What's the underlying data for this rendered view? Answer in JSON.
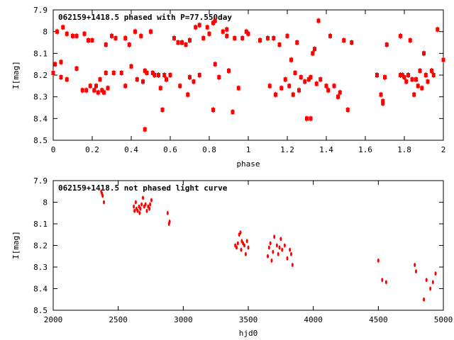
{
  "chart_data": [
    {
      "type": "scatter",
      "title": "062159+1418.5 phased with P=77.550day",
      "xlabel": "phase",
      "ylabel": "I[mag]",
      "xlim": [
        0,
        2
      ],
      "ylim": [
        7.9,
        8.5
      ],
      "y_inverted": true,
      "grid": false,
      "xticks": [
        0,
        0.2,
        0.4,
        0.6,
        0.8,
        1,
        1.2,
        1.4,
        1.6,
        1.8,
        2
      ],
      "xtick_labels": [
        "0",
        "0.2",
        "0.4",
        "0.6",
        "0.8",
        "1",
        "1.2",
        "1.4",
        "1.6",
        "1.8",
        "2"
      ],
      "yticks": [
        7.9,
        8,
        8.1,
        8.2,
        8.3,
        8.4,
        8.5
      ],
      "ytick_labels": [
        "7.9",
        "8",
        "8.1",
        "8.2",
        "8.3",
        "8.4",
        "8.5"
      ],
      "color": "#ff0000",
      "points": [
        [
          0.0,
          8.19
        ],
        [
          0.01,
          8.15
        ],
        [
          0.02,
          8.0
        ],
        [
          0.04,
          8.14
        ],
        [
          0.04,
          8.21
        ],
        [
          0.05,
          7.98
        ],
        [
          0.07,
          8.22
        ],
        [
          0.07,
          8.01
        ],
        [
          0.1,
          8.02
        ],
        [
          0.12,
          8.17
        ],
        [
          0.12,
          8.02
        ],
        [
          0.15,
          8.27
        ],
        [
          0.16,
          8.01
        ],
        [
          0.17,
          8.27
        ],
        [
          0.18,
          8.04
        ],
        [
          0.19,
          8.25
        ],
        [
          0.2,
          8.04
        ],
        [
          0.21,
          8.27
        ],
        [
          0.22,
          8.25
        ],
        [
          0.23,
          8.28
        ],
        [
          0.24,
          8.22
        ],
        [
          0.25,
          8.27
        ],
        [
          0.26,
          8.28
        ],
        [
          0.27,
          8.19
        ],
        [
          0.27,
          8.06
        ],
        [
          0.28,
          8.26
        ],
        [
          0.3,
          8.02
        ],
        [
          0.31,
          8.19
        ],
        [
          0.32,
          8.03
        ],
        [
          0.35,
          8.19
        ],
        [
          0.37,
          8.03
        ],
        [
          0.37,
          8.25
        ],
        [
          0.39,
          8.06
        ],
        [
          0.4,
          8.16
        ],
        [
          0.42,
          8.0
        ],
        [
          0.43,
          8.22
        ],
        [
          0.45,
          8.02
        ],
        [
          0.46,
          8.23
        ],
        [
          0.47,
          8.45
        ],
        [
          0.47,
          8.18
        ],
        [
          0.48,
          8.19
        ],
        [
          0.5,
          8.0
        ],
        [
          0.51,
          8.19
        ],
        [
          0.52,
          8.2
        ],
        [
          0.54,
          8.2
        ],
        [
          0.55,
          8.26
        ],
        [
          0.56,
          8.36
        ],
        [
          0.57,
          8.2
        ],
        [
          0.58,
          8.22
        ],
        [
          0.6,
          8.2
        ],
        [
          0.62,
          8.03
        ],
        [
          0.64,
          8.05
        ],
        [
          0.65,
          8.25
        ],
        [
          0.66,
          8.05
        ],
        [
          0.68,
          8.06
        ],
        [
          0.69,
          8.29
        ],
        [
          0.7,
          8.21
        ],
        [
          0.7,
          8.04
        ],
        [
          0.72,
          8.23
        ],
        [
          0.73,
          7.98
        ],
        [
          0.75,
          7.97
        ],
        [
          0.75,
          8.2
        ],
        [
          0.77,
          8.03
        ],
        [
          0.79,
          7.98
        ],
        [
          0.8,
          8.01
        ],
        [
          0.82,
          8.36
        ],
        [
          0.82,
          7.96
        ],
        [
          0.83,
          8.15
        ],
        [
          0.83,
          7.95
        ],
        [
          0.85,
          8.21
        ],
        [
          0.87,
          8.0
        ],
        [
          0.89,
          8.02
        ],
        [
          0.89,
          7.99
        ],
        [
          0.9,
          8.18
        ],
        [
          0.92,
          8.37
        ],
        [
          0.93,
          8.03
        ],
        [
          0.95,
          8.26
        ],
        [
          0.97,
          8.03
        ],
        [
          0.99,
          8.0
        ],
        [
          1.0,
          8.01
        ],
        [
          1.06,
          8.04
        ],
        [
          1.1,
          8.03
        ],
        [
          1.11,
          8.25
        ],
        [
          1.13,
          8.03
        ],
        [
          1.14,
          8.29
        ],
        [
          1.16,
          8.06
        ],
        [
          1.17,
          8.26
        ],
        [
          1.19,
          8.22
        ],
        [
          1.2,
          8.02
        ],
        [
          1.21,
          8.25
        ],
        [
          1.22,
          8.13
        ],
        [
          1.23,
          8.29
        ],
        [
          1.24,
          8.19
        ],
        [
          1.25,
          8.05
        ],
        [
          1.26,
          8.27
        ],
        [
          1.27,
          8.21
        ],
        [
          1.29,
          8.23
        ],
        [
          1.3,
          8.4
        ],
        [
          1.31,
          8.22
        ],
        [
          1.32,
          8.4
        ],
        [
          1.32,
          8.21
        ],
        [
          1.33,
          8.1
        ],
        [
          1.34,
          8.08
        ],
        [
          1.35,
          8.24
        ],
        [
          1.36,
          7.95
        ],
        [
          1.37,
          8.22
        ],
        [
          1.4,
          8.25
        ],
        [
          1.41,
          8.27
        ],
        [
          1.42,
          8.02
        ],
        [
          1.44,
          8.25
        ],
        [
          1.46,
          8.3
        ],
        [
          1.47,
          8.28
        ],
        [
          1.49,
          8.04
        ],
        [
          1.51,
          8.36
        ],
        [
          1.53,
          8.05
        ],
        [
          1.66,
          8.2
        ],
        [
          1.68,
          8.29
        ],
        [
          1.69,
          8.33
        ],
        [
          1.69,
          8.32
        ],
        [
          1.7,
          8.21
        ],
        [
          1.71,
          8.06
        ],
        [
          1.78,
          8.02
        ],
        [
          1.78,
          8.2
        ],
        [
          1.79,
          8.2
        ],
        [
          1.8,
          8.21
        ],
        [
          1.81,
          8.23
        ],
        [
          1.82,
          8.2
        ],
        [
          1.83,
          8.04
        ],
        [
          1.84,
          8.22
        ],
        [
          1.85,
          8.29
        ],
        [
          1.86,
          8.22
        ],
        [
          1.87,
          8.25
        ],
        [
          1.88,
          8.18
        ],
        [
          1.89,
          8.26
        ],
        [
          1.9,
          8.1
        ],
        [
          1.91,
          8.2
        ],
        [
          1.92,
          8.23
        ],
        [
          1.94,
          8.18
        ],
        [
          1.95,
          8.2
        ],
        [
          1.97,
          7.99
        ],
        [
          2.0,
          8.13
        ]
      ]
    },
    {
      "type": "scatter",
      "title": "062159+1418.5 not phased light curve",
      "xlabel": "hjd0",
      "ylabel": "I[mag]",
      "xlim": [
        2000,
        5000
      ],
      "ylim": [
        7.9,
        8.5
      ],
      "y_inverted": true,
      "grid": false,
      "xticks": [
        2000,
        2500,
        3000,
        3500,
        4000,
        4500,
        5000
      ],
      "xtick_labels": [
        "2000",
        "2500",
        "3000",
        "3500",
        "4000",
        "4500",
        "5000"
      ],
      "yticks": [
        7.9,
        8,
        8.1,
        8.2,
        8.3,
        8.4,
        8.5
      ],
      "ytick_labels": [
        "7.9",
        "8",
        "8.1",
        "8.2",
        "8.3",
        "8.4",
        "8.5"
      ],
      "color": "#ff0000",
      "points": [
        [
          2370,
          7.95
        ],
        [
          2375,
          7.96
        ],
        [
          2380,
          7.97
        ],
        [
          2390,
          8.0
        ],
        [
          2620,
          8.02
        ],
        [
          2625,
          8.04
        ],
        [
          2635,
          8.0
        ],
        [
          2640,
          8.03
        ],
        [
          2650,
          8.04
        ],
        [
          2660,
          8.02
        ],
        [
          2665,
          8.05
        ],
        [
          2670,
          8.03
        ],
        [
          2680,
          8.01
        ],
        [
          2690,
          7.98
        ],
        [
          2700,
          8.02
        ],
        [
          2710,
          8.01
        ],
        [
          2720,
          8.04
        ],
        [
          2730,
          8.02
        ],
        [
          2740,
          8.03
        ],
        [
          2745,
          8.01
        ],
        [
          2755,
          7.99
        ],
        [
          2880,
          8.05
        ],
        [
          2890,
          8.1
        ],
        [
          2895,
          8.09
        ],
        [
          3400,
          8.2
        ],
        [
          3410,
          8.21
        ],
        [
          3420,
          8.19
        ],
        [
          3430,
          8.15
        ],
        [
          3440,
          8.14
        ],
        [
          3445,
          8.22
        ],
        [
          3450,
          8.18
        ],
        [
          3460,
          8.19
        ],
        [
          3470,
          8.2
        ],
        [
          3480,
          8.24
        ],
        [
          3490,
          8.18
        ],
        [
          3500,
          8.21
        ],
        [
          3650,
          8.25
        ],
        [
          3660,
          8.21
        ],
        [
          3670,
          8.19
        ],
        [
          3680,
          8.27
        ],
        [
          3690,
          8.23
        ],
        [
          3700,
          8.16
        ],
        [
          3720,
          8.2
        ],
        [
          3730,
          8.24
        ],
        [
          3740,
          8.21
        ],
        [
          3750,
          8.17
        ],
        [
          3760,
          8.22
        ],
        [
          3780,
          8.2
        ],
        [
          3800,
          8.26
        ],
        [
          3820,
          8.22
        ],
        [
          3830,
          8.24
        ],
        [
          3840,
          8.29
        ],
        [
          4500,
          8.27
        ],
        [
          4530,
          8.36
        ],
        [
          4560,
          8.37
        ],
        [
          4780,
          8.29
        ],
        [
          4790,
          8.32
        ],
        [
          4850,
          8.45
        ],
        [
          4870,
          8.36
        ],
        [
          4900,
          8.4
        ],
        [
          4920,
          8.37
        ],
        [
          4940,
          8.33
        ]
      ]
    }
  ]
}
